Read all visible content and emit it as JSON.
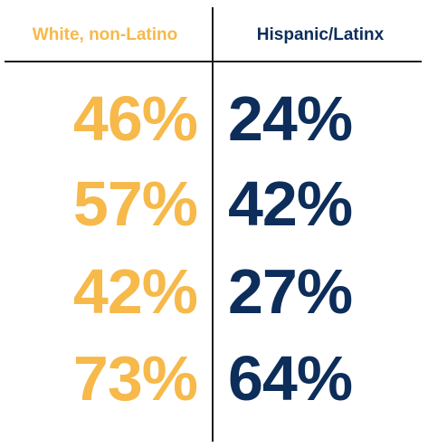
{
  "colors": {
    "white_non_latino": "#f6b94a",
    "hispanic_latinx": "#0d2d5a",
    "divider": "#1a1a1a"
  },
  "chart_data": {
    "type": "table",
    "columns": [
      "White, non-Latino",
      "Hispanic/Latinx"
    ],
    "rows": [
      [
        "46%",
        "24%"
      ],
      [
        "57%",
        "42%"
      ],
      [
        "42%",
        "27%"
      ],
      [
        "73%",
        "64%"
      ]
    ],
    "series": [
      {
        "name": "White, non-Latino",
        "values": [
          46,
          57,
          42,
          73
        ]
      },
      {
        "name": "Hispanic/Latinx",
        "values": [
          24,
          42,
          27,
          64
        ]
      }
    ],
    "unit": "%"
  }
}
